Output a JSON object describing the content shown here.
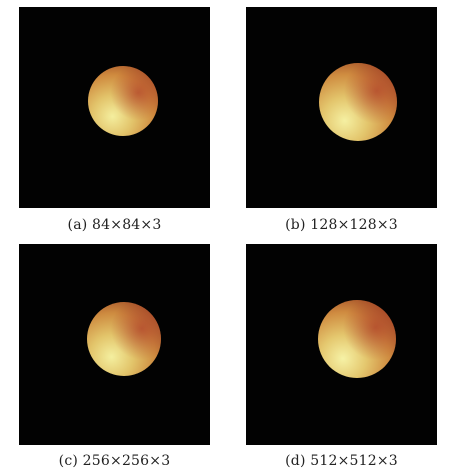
{
  "figure": {
    "panels": [
      {
        "id": "a",
        "caption": "(a) 84×84×3",
        "image_description": "eclipsed moon on black background, low resolution"
      },
      {
        "id": "b",
        "caption": "(b) 128×128×3",
        "image_description": "eclipsed moon on black background"
      },
      {
        "id": "c",
        "caption": "(c) 256×256×3",
        "image_description": "eclipsed moon on black background"
      },
      {
        "id": "d",
        "caption": "(d) 512×512×3",
        "image_description": "eclipsed moon on black background, high resolution"
      }
    ],
    "colors": {
      "background": "#020202",
      "moon_light": "#f2ea9a",
      "moon_mid": "#d9a04c",
      "moon_dark": "#a5502a"
    }
  }
}
